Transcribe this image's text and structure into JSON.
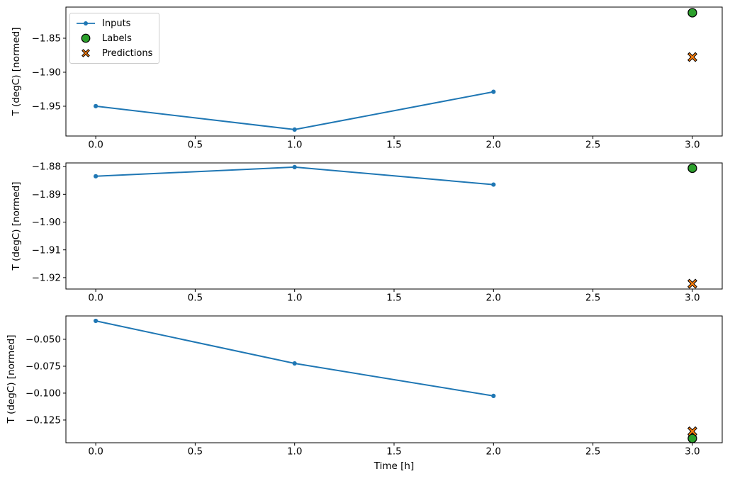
{
  "figure": {
    "background": "#ffffff",
    "xlabel": "Time [h]",
    "ylabel": "T (degC) [normed]",
    "legend": {
      "position": "upper left",
      "items": [
        {
          "label": "Inputs",
          "marker": "line-dot",
          "color": "#1f77b4"
        },
        {
          "label": "Labels",
          "marker": "circle",
          "color": "#2ca02c"
        },
        {
          "label": "Predictions",
          "marker": "x-cross",
          "color": "#ff7f0e"
        }
      ]
    },
    "colors": {
      "inputs": "#1f77b4",
      "labels": "#2ca02c",
      "predictions": "#ff7f0e",
      "marker_edge": "#000000",
      "axis": "#000000",
      "legend_border": "#cccccc"
    }
  },
  "chart_data": [
    {
      "type": "line",
      "title": "",
      "xlabel": "",
      "ylabel": "T (degC) [normed]",
      "grid": false,
      "legend_position": "upper left",
      "xlim": [
        -0.15,
        3.15
      ],
      "ylim": [
        -1.9938,
        -1.8042
      ],
      "xticks": [
        0.0,
        0.5,
        1.0,
        1.5,
        2.0,
        2.5,
        3.0
      ],
      "xtick_labels": [
        "0.0",
        "0.5",
        "1.0",
        "1.5",
        "2.0",
        "2.5",
        "3.0"
      ],
      "yticks": [
        -1.85,
        -1.9,
        -1.95
      ],
      "ytick_labels": [
        "−1.85",
        "−1.90",
        "−1.95"
      ],
      "series": [
        {
          "name": "Inputs",
          "type": "line",
          "marker": "dot",
          "color": "#1f77b4",
          "x": [
            0.0,
            1.0,
            2.0
          ],
          "y": [
            -1.9499,
            -1.9843,
            -1.9288
          ]
        },
        {
          "name": "Labels",
          "type": "scatter",
          "marker": "circle",
          "color": "#2ca02c",
          "x": [
            3.0
          ],
          "y": [
            -1.8125
          ]
        },
        {
          "name": "Predictions",
          "type": "scatter",
          "marker": "x-cross",
          "color": "#ff7f0e",
          "x": [
            3.0
          ],
          "y": [
            -1.8777
          ]
        }
      ]
    },
    {
      "type": "line",
      "title": "",
      "xlabel": "",
      "ylabel": "T (degC) [normed]",
      "grid": false,
      "legend_position": "none",
      "xlim": [
        -0.15,
        3.15
      ],
      "ylim": [
        -1.9241,
        -1.8787
      ],
      "xticks": [
        0.0,
        0.5,
        1.0,
        1.5,
        2.0,
        2.5,
        3.0
      ],
      "xtick_labels": [
        "0.0",
        "0.5",
        "1.0",
        "1.5",
        "2.0",
        "2.5",
        "3.0"
      ],
      "yticks": [
        -1.88,
        -1.89,
        -1.9,
        -1.91,
        -1.92
      ],
      "ytick_labels": [
        "−1.88",
        "−1.89",
        "−1.90",
        "−1.91",
        "−1.92"
      ],
      "series": [
        {
          "name": "Inputs",
          "type": "line",
          "marker": "dot",
          "color": "#1f77b4",
          "x": [
            0.0,
            1.0,
            2.0
          ],
          "y": [
            -1.8835,
            -1.8802,
            -1.8865
          ]
        },
        {
          "name": "Labels",
          "type": "scatter",
          "marker": "circle",
          "color": "#2ca02c",
          "x": [
            3.0
          ],
          "y": [
            -1.8806
          ]
        },
        {
          "name": "Predictions",
          "type": "scatter",
          "marker": "x-cross",
          "color": "#ff7f0e",
          "x": [
            3.0
          ],
          "y": [
            -1.9222
          ]
        }
      ]
    },
    {
      "type": "line",
      "title": "",
      "xlabel": "Time [h]",
      "ylabel": "T (degC) [normed]",
      "grid": false,
      "legend_position": "none",
      "xlim": [
        -0.15,
        3.15
      ],
      "ylim": [
        -0.1461,
        -0.0283
      ],
      "xticks": [
        0.0,
        0.5,
        1.0,
        1.5,
        2.0,
        2.5,
        3.0
      ],
      "xtick_labels": [
        "0.0",
        "0.5",
        "1.0",
        "1.5",
        "2.0",
        "2.5",
        "3.0"
      ],
      "yticks": [
        -0.05,
        -0.075,
        -0.1,
        -0.125
      ],
      "ytick_labels": [
        "−0.050",
        "−0.075",
        "−0.100",
        "−0.125"
      ],
      "series": [
        {
          "name": "Inputs",
          "type": "line",
          "marker": "dot",
          "color": "#1f77b4",
          "x": [
            0.0,
            1.0,
            2.0
          ],
          "y": [
            -0.0329,
            -0.0724,
            -0.1026
          ]
        },
        {
          "name": "Labels",
          "type": "scatter",
          "marker": "circle",
          "color": "#2ca02c",
          "x": [
            3.0
          ],
          "y": [
            -0.1421
          ]
        },
        {
          "name": "Predictions",
          "type": "scatter",
          "marker": "x-cross",
          "color": "#ff7f0e",
          "x": [
            3.0
          ],
          "y": [
            -0.1355
          ]
        }
      ]
    }
  ]
}
